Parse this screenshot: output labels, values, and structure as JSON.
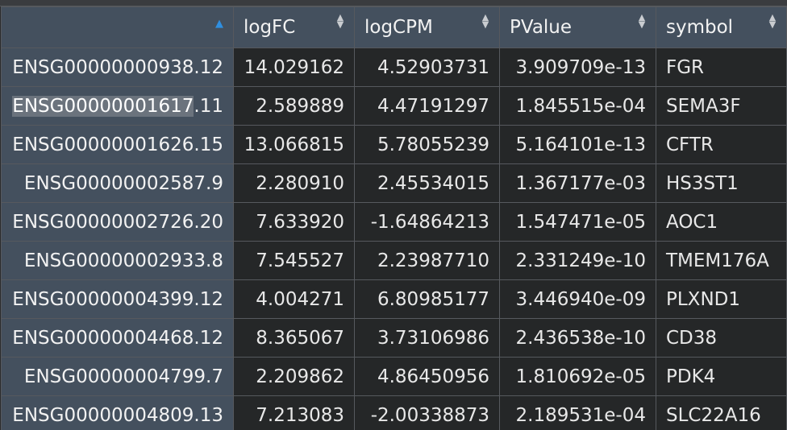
{
  "table": {
    "columns": [
      "",
      "logFC",
      "logCPM",
      "PValue",
      "symbol"
    ],
    "rows": [
      {
        "id": "ENSG00000000938.12",
        "logFC": "14.029162",
        "logCPM": "4.52903731",
        "pvalue": "3.909709e-13",
        "symbol": "FGR"
      },
      {
        "id": "ENSG00000001617.11",
        "logFC": "2.589889",
        "logCPM": "4.47191297",
        "pvalue": "1.845515e-04",
        "symbol": "SEMA3F",
        "id_hl": "ENSG00000001617",
        "id_rest": ".11"
      },
      {
        "id": "ENSG00000001626.15",
        "logFC": "13.066815",
        "logCPM": "5.78055239",
        "pvalue": "5.164101e-13",
        "symbol": "CFTR"
      },
      {
        "id": "ENSG00000002587.9",
        "logFC": "2.280910",
        "logCPM": "2.45534015",
        "pvalue": "1.367177e-03",
        "symbol": "HS3ST1"
      },
      {
        "id": "ENSG00000002726.20",
        "logFC": "7.633920",
        "logCPM": "-1.64864213",
        "pvalue": "1.547471e-05",
        "symbol": "AOC1"
      },
      {
        "id": "ENSG00000002933.8",
        "logFC": "7.545527",
        "logCPM": "2.23987710",
        "pvalue": "2.331249e-10",
        "symbol": "TMEM176A"
      },
      {
        "id": "ENSG00000004399.12",
        "logFC": "4.004271",
        "logCPM": "6.80985177",
        "pvalue": "3.446940e-09",
        "symbol": "PLXND1"
      },
      {
        "id": "ENSG00000004468.12",
        "logFC": "8.365067",
        "logCPM": "3.73106986",
        "pvalue": "2.436538e-10",
        "symbol": "CD38"
      },
      {
        "id": "ENSG00000004799.7",
        "logFC": "2.209862",
        "logCPM": "4.86450956",
        "pvalue": "1.810692e-05",
        "symbol": "PDK4"
      },
      {
        "id": "ENSG00000004809.13",
        "logFC": "7.213083",
        "logCPM": "-2.00338873",
        "pvalue": "2.189531e-04",
        "symbol": "SLC22A16"
      }
    ]
  },
  "icons": {
    "sort_active": "sort-ascending-icon",
    "sort_inactive": "sort-both-icon"
  },
  "colors": {
    "header_bg": "#44505e",
    "cell_bg": "#252728",
    "sort_active": "#2f8fe0"
  }
}
